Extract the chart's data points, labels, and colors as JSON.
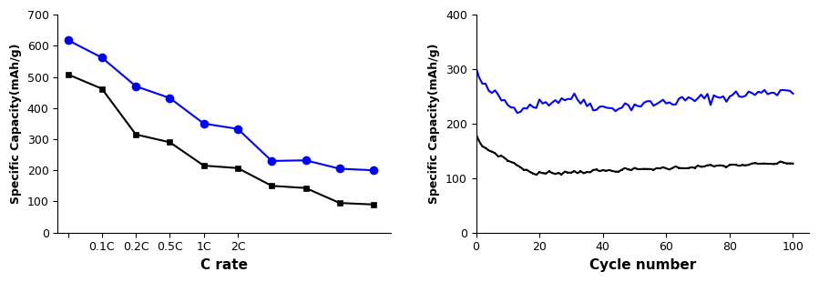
{
  "left_chart": {
    "xlabel": "C rate",
    "ylabel": "Specific Capacity(mAh/g)",
    "ylim": [
      0,
      700
    ],
    "yticks": [
      0,
      100,
      200,
      300,
      400,
      500,
      600,
      700
    ],
    "xtick_labels": [
      "",
      "0.1C",
      "0.2C",
      "0.5C",
      "1C",
      "2C"
    ],
    "xtick_positions": [
      0,
      1,
      2,
      3,
      4,
      5
    ],
    "blue_x": [
      0,
      1,
      2,
      3,
      4,
      5,
      6,
      7,
      8,
      9
    ],
    "blue_y": [
      618,
      562,
      470,
      432,
      350,
      333,
      230,
      232,
      205,
      200
    ],
    "black_x": [
      0,
      1,
      2,
      3,
      4,
      5,
      6,
      7,
      8,
      9
    ],
    "black_y": [
      508,
      462,
      315,
      290,
      215,
      207,
      150,
      143,
      95,
      90
    ],
    "blue_color": "#0000ff",
    "black_color": "#000000",
    "xlim": [
      -0.3,
      9.5
    ]
  },
  "right_chart": {
    "xlabel": "Cycle number",
    "ylabel": "Specific Capacity(mAh/g)",
    "ylim": [
      0,
      400
    ],
    "yticks": [
      0,
      100,
      200,
      300,
      400
    ],
    "xticks": [
      0,
      20,
      40,
      60,
      80,
      100
    ],
    "xlim": [
      0,
      105
    ],
    "blue_color": "#0000ff",
    "black_color": "#000000"
  },
  "fig_width": 8.99,
  "fig_height": 3.1,
  "dpi": 100
}
